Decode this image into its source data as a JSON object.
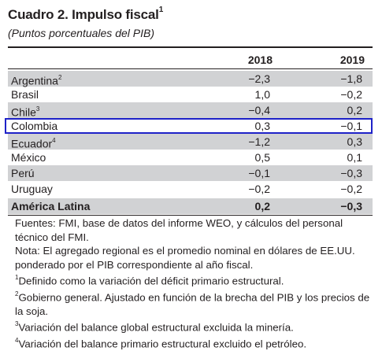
{
  "title": "Cuadro 2. Impulso fiscal",
  "title_note": "1",
  "subtitle": "(Puntos porcentuales del PIB)",
  "columns": [
    "2018",
    "2019"
  ],
  "rows": [
    {
      "label": "Argentina",
      "note": "2",
      "v2018": "−2,3",
      "v2019": "−1,8"
    },
    {
      "label": "Brasil",
      "note": "",
      "v2018": "1,0",
      "v2019": "−0,2"
    },
    {
      "label": "Chile",
      "note": "3",
      "v2018": "−0,4",
      "v2019": "0,2"
    },
    {
      "label": "Colombia",
      "note": "",
      "v2018": "0,3",
      "v2019": "−0,1"
    },
    {
      "label": "Ecuador",
      "note": "4",
      "v2018": "−1,2",
      "v2019": "0,3"
    },
    {
      "label": "México",
      "note": "",
      "v2018": "0,5",
      "v2019": "0,1"
    },
    {
      "label": "Perú",
      "note": "",
      "v2018": "−0,1",
      "v2019": "−0,3"
    },
    {
      "label": "Uruguay",
      "note": "",
      "v2018": "−0,2",
      "v2019": "−0,2"
    }
  ],
  "total": {
    "label": "América Latina",
    "v2018": "0,2",
    "v2019": "−0,3"
  },
  "notes": {
    "sources": "Fuentes: FMI, base de datos del informe WEO, y cálculos del personal técnico del FMI.",
    "note": "Nota: El agregado regional es el promedio nominal en dólares de EE.UU. ponderado por el PIB correspondiente al año fiscal.",
    "fn1_mark": "1",
    "fn1": "Definido como la variación del déficit primario estructural.",
    "fn2_mark": "2",
    "fn2": "Gobierno general. Ajustado en función de la brecha del PIB y los precios de la soja.",
    "fn3_mark": "3",
    "fn3": "Variación del balance global estructural excluida la minería.",
    "fn4_mark": "4",
    "fn4": "Variación del balance primario estructural excluido el petróleo."
  },
  "highlight_color": "#1e22c8",
  "shade_color": "#d1d2d4"
}
